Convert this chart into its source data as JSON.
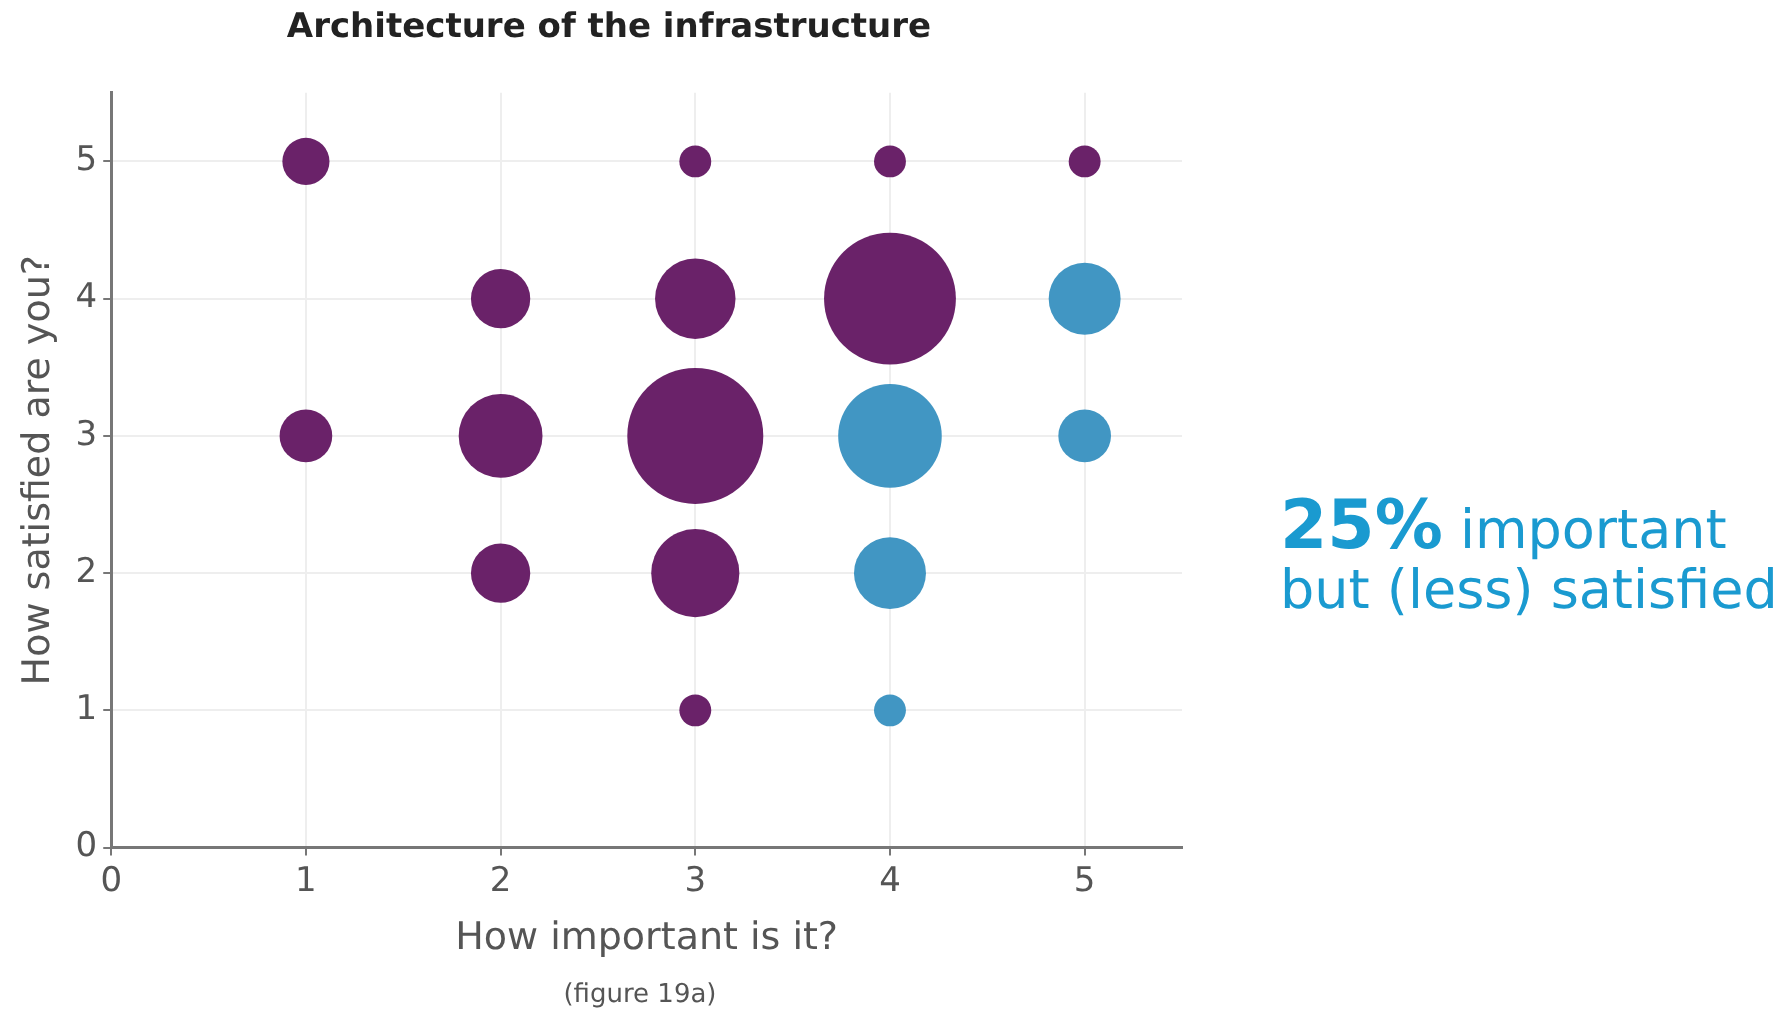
{
  "chart_data": {
    "type": "bubble",
    "title": "Architecture of the infrastructure",
    "xlabel": "How important is it?",
    "ylabel": "How satisfied are you?",
    "xlim": [
      0,
      5.5
    ],
    "xticks": [
      0,
      1,
      2,
      3,
      4,
      5
    ],
    "ylim": [
      0,
      5.5
    ],
    "yticks": [
      0,
      1,
      2,
      3,
      4,
      5
    ],
    "grid": true,
    "legend": false,
    "marker": "circle",
    "series": [
      {
        "color": "#6a2269",
        "x": [
          1,
          3,
          4,
          5,
          2,
          3,
          4,
          1,
          2,
          3,
          2,
          3,
          3
        ],
        "values": [
          5,
          5,
          5,
          5,
          4,
          4,
          4,
          3,
          3,
          3,
          2,
          2,
          1
        ],
        "sizes": [
          0.12,
          0.055,
          0.055,
          0.055,
          0.19,
          0.35,
          0.94,
          0.15,
          0.38,
          1,
          0.19,
          0.42,
          0.055
        ]
      },
      {
        "color": "#4196c3",
        "x": [
          5,
          4,
          5,
          4,
          4
        ],
        "values": [
          4,
          3,
          3,
          2,
          1
        ],
        "sizes": [
          0.28,
          0.58,
          0.15,
          0.28,
          0.055
        ]
      }
    ],
    "annotations": [
      "25% important but (less) satisfied",
      "(figure 19a)"
    ]
  }
}
